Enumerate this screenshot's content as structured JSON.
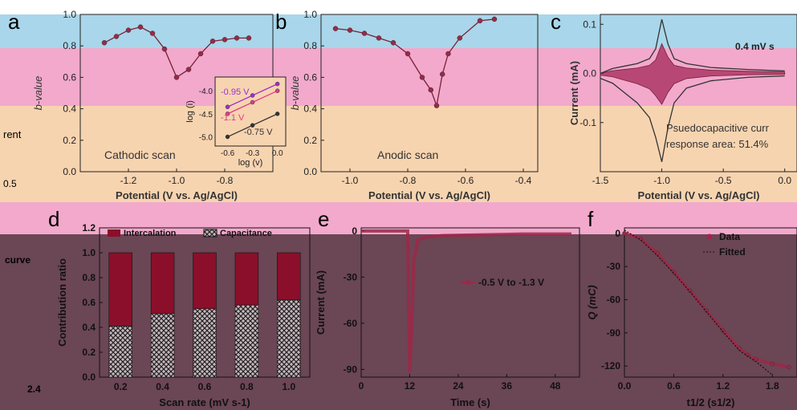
{
  "colors": {
    "band_blue": "#a9d6ea",
    "band_pink": "#f2a9cc",
    "band_orange": "#f7d4b0",
    "band_maroon": "#6b4655",
    "series_dark": "#7a1e35",
    "series_marker": "#9c2848",
    "series_teal": "#3a8f8a",
    "intercalation": "#8b0f2a",
    "capacitance_hatch": "#222222",
    "pseudocap_fill": "#a3285a"
  },
  "panels": {
    "a": {
      "label": "a"
    },
    "b": {
      "label": "b"
    },
    "c": {
      "label": "c"
    },
    "d": {
      "label": "d"
    },
    "e": {
      "label": "e"
    },
    "f": {
      "label": "f"
    },
    "left_edge": {
      "lbl_rent": "rent",
      "lbl_curve": "curve",
      "tick_05": "0.5",
      "tick_24": "2.4"
    }
  },
  "chart_data": [
    {
      "id": "a",
      "type": "line",
      "annotation": "Cathodic scan",
      "xlabel": "Potential (V vs. Ag/AgCl)",
      "ylabel": "b-value",
      "xlim": [
        -1.4,
        -0.6
      ],
      "ylim": [
        0.0,
        1.0
      ],
      "xticks": [
        "-1.2",
        "-1.0",
        "-0.8"
      ],
      "yticks": [
        "0.0",
        "0.2",
        "0.4",
        "0.6",
        "0.8",
        "1.0"
      ],
      "x": [
        -1.3,
        -1.25,
        -1.2,
        -1.15,
        -1.1,
        -1.05,
        -1.0,
        -0.95,
        -0.9,
        -0.85,
        -0.8,
        -0.75,
        -0.7
      ],
      "y": [
        0.82,
        0.86,
        0.9,
        0.92,
        0.88,
        0.78,
        0.6,
        0.65,
        0.75,
        0.83,
        0.84,
        0.85,
        0.85
      ],
      "inset": {
        "xlabel": "log (v)",
        "ylabel": "log (i)",
        "xticks": [
          "-0.6",
          "-0.3",
          "0.0"
        ],
        "yticks": [
          "-4.0",
          "-4.5",
          "-5.0"
        ],
        "series": [
          {
            "name": "-0.95 V",
            "color": "#9b30d0",
            "x": [
              -0.6,
              -0.3,
              0.0
            ],
            "y": [
              -4.35,
              -4.1,
              -3.85
            ]
          },
          {
            "name": "-1.1 V",
            "color": "#e23a8a",
            "x": [
              -0.6,
              -0.3,
              0.0
            ],
            "y": [
              -4.5,
              -4.25,
              -4.0
            ]
          },
          {
            "name": "-0.75 V",
            "color": "#333333",
            "x": [
              -0.6,
              -0.3,
              0.0
            ],
            "y": [
              -5.0,
              -4.75,
              -4.5
            ]
          }
        ]
      }
    },
    {
      "id": "b",
      "type": "line",
      "annotation": "Anodic scan",
      "xlabel": "Potential (V vs. Ag/AgCl)",
      "ylabel": "b-value",
      "xlim": [
        -1.1,
        -0.35
      ],
      "ylim": [
        0.0,
        1.0
      ],
      "xticks": [
        "-1.0",
        "-0.8",
        "-0.6",
        "-0.4"
      ],
      "yticks": [
        "0.0",
        "0.2",
        "0.4",
        "0.6",
        "0.8",
        "1.0"
      ],
      "x": [
        -1.05,
        -1.0,
        -0.95,
        -0.9,
        -0.85,
        -0.8,
        -0.75,
        -0.72,
        -0.7,
        -0.68,
        -0.66,
        -0.62,
        -0.55,
        -0.5
      ],
      "y": [
        0.91,
        0.9,
        0.88,
        0.85,
        0.82,
        0.75,
        0.6,
        0.52,
        0.42,
        0.62,
        0.75,
        0.85,
        0.96,
        0.97
      ]
    },
    {
      "id": "c",
      "type": "line",
      "annotation": "0.4 mV s",
      "annotation2": "Psuedocapacitive curr",
      "annotation3": "response area: 51.4%",
      "xlabel": "Potential (V vs. Ag/AgCl)",
      "ylabel": "Current (mA)",
      "xlim": [
        -1.5,
        0.1
      ],
      "ylim": [
        -0.2,
        0.12
      ],
      "xticks": [
        "-1.5",
        "-1.0",
        "-0.5",
        "0.0",
        "0.5"
      ],
      "yticks": [
        "0.1",
        "0.0",
        "-0.1"
      ],
      "x": [
        -1.5,
        -1.4,
        -1.3,
        -1.2,
        -1.1,
        -1.05,
        -1.0,
        -0.95,
        -0.9,
        -0.8,
        -0.6,
        -0.3,
        0.0
      ],
      "y_upper": [
        0.0,
        0.01,
        0.015,
        0.02,
        0.03,
        0.05,
        0.11,
        0.06,
        0.03,
        0.02,
        0.012,
        0.008,
        0.005
      ],
      "y_lower": [
        -0.01,
        -0.02,
        -0.04,
        -0.06,
        -0.09,
        -0.13,
        -0.18,
        -0.11,
        -0.06,
        -0.03,
        -0.015,
        -0.008,
        -0.005
      ]
    },
    {
      "id": "d",
      "type": "bar",
      "xlabel": "Scan rate (mV s-1)",
      "ylabel": "Contribution ratio",
      "ylim": [
        0.0,
        1.2
      ],
      "xticks": [
        "0.2",
        "0.4",
        "0.6",
        "0.8",
        "1.0"
      ],
      "yticks": [
        "0.0",
        "0.2",
        "0.4",
        "0.6",
        "0.8",
        "1.0",
        "1.2"
      ],
      "categories": [
        "0.2",
        "0.4",
        "0.6",
        "0.8",
        "1.0"
      ],
      "series": [
        {
          "name": "Capacitance",
          "values": [
            0.41,
            0.51,
            0.55,
            0.58,
            0.62
          ]
        },
        {
          "name": "Intercalation",
          "values": [
            0.59,
            0.49,
            0.45,
            0.42,
            0.38
          ]
        }
      ],
      "legend": [
        "Intercalation",
        "Capacitance"
      ]
    },
    {
      "id": "e",
      "type": "line",
      "legend_label": "-0.5 V to -1.3 V",
      "xlabel": "Time (s)",
      "ylabel": "Current (mA)",
      "xlim": [
        0,
        54
      ],
      "ylim": [
        -95,
        2
      ],
      "xticks": [
        "0",
        "12",
        "24",
        "36",
        "48"
      ],
      "yticks": [
        "0",
        "-30",
        "-60",
        "-90"
      ],
      "x": [
        0,
        6,
        11.5,
        12.0,
        12.3,
        12.6,
        13.0,
        14,
        16,
        20,
        30,
        40,
        52
      ],
      "y": [
        0,
        0,
        0,
        -92,
        -75,
        -55,
        -20,
        -6,
        -4,
        -3,
        -2.5,
        -2,
        -2
      ]
    },
    {
      "id": "f",
      "type": "line",
      "legend": [
        "Data",
        "Fitted"
      ],
      "xlabel": "t1/2 (s1/2)",
      "ylabel": "Q (mC)",
      "xlim": [
        0,
        2.1
      ],
      "ylim": [
        -130,
        5
      ],
      "xticks": [
        "0.0",
        "0.6",
        "1.2",
        "1.8"
      ],
      "yticks": [
        "0",
        "-30",
        "-60",
        "-90",
        "-120"
      ],
      "x": [
        0.0,
        0.2,
        0.4,
        0.6,
        0.8,
        1.0,
        1.2,
        1.4,
        1.5,
        1.6,
        1.8,
        2.0
      ],
      "y": [
        0,
        -5,
        -18,
        -35,
        -52,
        -70,
        -88,
        -104,
        -110,
        -114,
        -118,
        -121
      ],
      "fit_x": [
        0.0,
        0.2,
        0.4,
        0.6,
        0.8,
        1.0,
        1.2,
        1.4,
        1.6,
        1.8
      ],
      "fit_y": [
        3,
        -6,
        -20,
        -36,
        -53,
        -71,
        -89,
        -106,
        -116,
        -128
      ]
    }
  ]
}
